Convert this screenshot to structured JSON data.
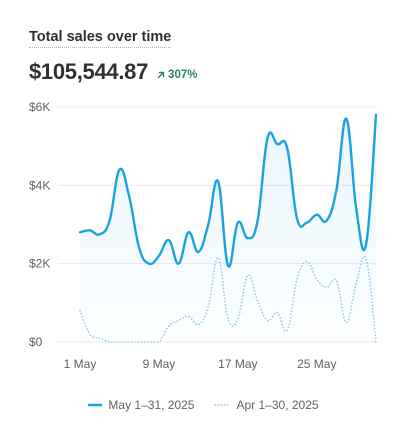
{
  "card": {
    "title": "Total sales over time",
    "metric": "$105,544.87",
    "delta": "307%",
    "delta_icon": "arrow-up-right-icon",
    "delta_color": "#29845a"
  },
  "colors": {
    "current": "#1aa3df",
    "previous": "#8cc9ea",
    "grid": "#ebebeb",
    "axis_text": "#616161"
  },
  "legend": {
    "current_label": "May 1–31, 2025",
    "previous_label": "Apr 1–30, 2025"
  },
  "chart_data": {
    "type": "line",
    "title": "Total sales over time",
    "xlabel": "",
    "ylabel": "",
    "ylim": [
      0,
      6000
    ],
    "y_ticks": [
      0,
      2000,
      4000,
      6000
    ],
    "y_tick_labels": [
      "$0",
      "$2K",
      "$4K",
      "$6K"
    ],
    "x": [
      1,
      2,
      3,
      4,
      5,
      6,
      7,
      8,
      9,
      10,
      11,
      12,
      13,
      14,
      15,
      16,
      17,
      18,
      19,
      20,
      21,
      22,
      23,
      24,
      25,
      26,
      27,
      28,
      29,
      30,
      31
    ],
    "x_ticks": [
      1,
      9,
      17,
      25
    ],
    "x_tick_labels": [
      "1 May",
      "9 May",
      "17 May",
      "25 May"
    ],
    "grid": true,
    "legend_position": "bottom",
    "series": [
      {
        "name": "May 1–31, 2025",
        "style": "solid",
        "fill": true,
        "values": [
          2800,
          2850,
          2750,
          3100,
          4400,
          3700,
          2400,
          2000,
          2200,
          2600,
          2000,
          2800,
          2300,
          3000,
          4100,
          1950,
          3050,
          2650,
          3100,
          5200,
          5050,
          4950,
          3150,
          3050,
          3250,
          3100,
          3900,
          5700,
          3400,
          2500,
          5800
        ]
      },
      {
        "name": "Apr 1–30, 2025",
        "style": "dotted",
        "fill": false,
        "values": [
          800,
          200,
          100,
          0,
          0,
          0,
          0,
          0,
          0,
          400,
          550,
          650,
          450,
          900,
          2150,
          600,
          600,
          1700,
          1050,
          550,
          750,
          300,
          1600,
          2050,
          1600,
          1400,
          1550,
          500,
          1500,
          2100,
          0
        ]
      }
    ]
  }
}
